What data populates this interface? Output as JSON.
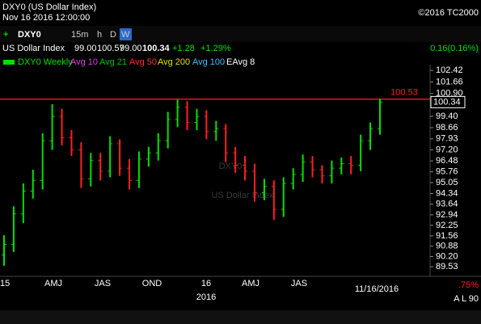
{
  "header": {
    "title": "DXY0 (US Dollar Index)",
    "timestamp": "Nov 16 2016 12:00:00",
    "copyright": "©2016 TC2000"
  },
  "toolbar": {
    "symbol": "DXY0",
    "intervals": [
      "15m",
      "h",
      "D",
      "W"
    ],
    "change": "0.16(0.16%)"
  },
  "quote": {
    "name": "US Dollar Index",
    "open": "99.00",
    "high": "100.57",
    "low": "99.00",
    "last": "100.34",
    "change": "+1.28",
    "change_pct": "+1.29%"
  },
  "legend": [
    {
      "name": "DXY0 Weekly",
      "color": "#00e000"
    },
    {
      "name": "Avg 10",
      "color": "#e040e0"
    },
    {
      "name": "Avg 21",
      "color": "#00c000"
    },
    {
      "name": "Avg 50",
      "color": "#ff3030"
    },
    {
      "name": "Avg 200",
      "color": "#e0e000"
    },
    {
      "name": "Avg 100",
      "color": "#40c0ff"
    },
    {
      "name": "EAvg 8",
      "color": "#ffffff"
    }
  ],
  "watermark": {
    "symbol": "DXY0",
    "name": "US Dollar Index"
  },
  "chart_data": {
    "type": "ohlc",
    "up_color": "#00e000",
    "down_color": "#ff2020",
    "open": [
      90.3,
      91.0,
      93.0,
      94.5,
      95.2,
      97.8,
      99.4,
      98.0,
      97.2,
      95.3,
      96.5,
      95.8,
      97.6,
      96.0,
      95.2,
      96.6,
      97.0,
      97.8,
      99.2,
      100.0,
      99.0,
      99.4,
      98.4,
      98.6,
      97.0,
      96.2,
      95.8,
      94.4,
      94.8,
      93.3,
      95.0,
      95.6,
      96.4,
      95.9,
      95.5,
      96.0,
      96.3,
      96.2,
      97.8,
      98.6
    ],
    "high": [
      91.6,
      93.5,
      95.0,
      95.9,
      98.3,
      100.2,
      99.9,
      98.5,
      97.7,
      97.0,
      97.0,
      98.1,
      97.9,
      96.6,
      97.1,
      97.4,
      98.3,
      99.7,
      100.5,
      100.4,
      99.9,
      99.8,
      99.1,
      98.9,
      97.4,
      96.8,
      96.3,
      95.3,
      95.2,
      95.4,
      96.0,
      96.9,
      96.8,
      96.2,
      96.5,
      96.7,
      96.8,
      98.2,
      99.0,
      100.57
    ],
    "low": [
      89.6,
      90.5,
      92.4,
      94.0,
      94.6,
      97.2,
      97.5,
      96.8,
      94.7,
      94.8,
      95.2,
      95.4,
      95.5,
      94.6,
      94.7,
      96.1,
      96.5,
      97.3,
      98.7,
      98.5,
      98.5,
      97.9,
      97.8,
      96.4,
      95.7,
      95.2,
      93.8,
      93.9,
      92.6,
      92.8,
      94.6,
      95.1,
      95.4,
      95.0,
      95.0,
      95.6,
      95.6,
      95.8,
      97.2,
      98.2
    ],
    "close": [
      91.0,
      93.0,
      94.5,
      95.2,
      97.8,
      99.4,
      98.0,
      97.2,
      95.3,
      96.5,
      95.8,
      97.6,
      96.0,
      95.2,
      96.6,
      97.0,
      97.8,
      99.2,
      100.0,
      99.0,
      99.4,
      98.4,
      98.6,
      97.0,
      96.2,
      95.8,
      94.4,
      94.8,
      93.3,
      95.0,
      95.6,
      96.4,
      95.9,
      95.5,
      96.0,
      96.3,
      96.2,
      97.8,
      98.6,
      100.34
    ],
    "ylim": [
      88.9,
      102.8
    ],
    "yticks": [
      102.42,
      101.66,
      {
        "value": 100.9,
        "label": "100.90"
      },
      {
        "value": 99.4,
        "label": "99.40"
      },
      98.66,
      97.93,
      {
        "value": 97.2,
        "label": "97.20"
      },
      96.48,
      95.76,
      95.05,
      94.34,
      93.64,
      92.94,
      92.25,
      91.56,
      90.88,
      {
        "value": 90.2,
        "label": "90.20"
      },
      89.53
    ],
    "resistance": 100.53,
    "last_price": 100.34,
    "xlabels": [
      "15",
      "AMJ",
      "JAS",
      "OND",
      "16",
      "AMJ",
      "JAS"
    ],
    "year": "2016",
    "date": "11/16/2016"
  },
  "footer": {
    "pct": ".75%",
    "flags": "A L 90"
  }
}
